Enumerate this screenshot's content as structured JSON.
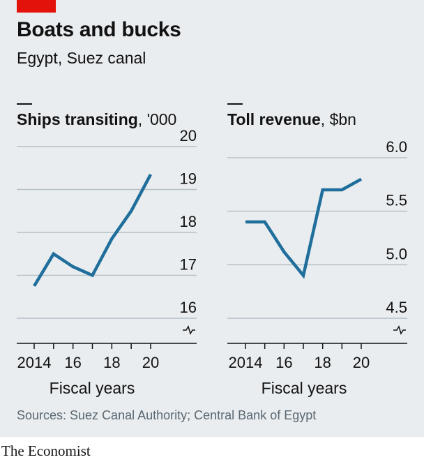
{
  "header": {
    "title": "Boats and bucks",
    "subtitle": "Egypt, Suez canal"
  },
  "chart_data": [
    {
      "type": "line",
      "title": "Ships transiting",
      "unit": "'000",
      "xlabel": "Fiscal years",
      "x": [
        2014,
        2015,
        2016,
        2017,
        2018,
        2019,
        2020
      ],
      "x_tick_labels": [
        "2014",
        "16",
        "18",
        "20"
      ],
      "y_ticks": [
        "16",
        "17",
        "18",
        "19",
        "20"
      ],
      "ylim": [
        15.8,
        20
      ],
      "axis_break": true,
      "series": [
        {
          "values": [
            16.75,
            17.5,
            17.2,
            17.0,
            17.85,
            18.5,
            19.35
          ]
        }
      ],
      "color": "#1f6e9b",
      "grid": true
    },
    {
      "type": "line",
      "title": "Toll revenue",
      "unit": "$bn",
      "xlabel": "Fiscal years",
      "x": [
        2014,
        2015,
        2016,
        2017,
        2018,
        2019,
        2020
      ],
      "x_tick_labels": [
        "2014",
        "16",
        "18",
        "20"
      ],
      "y_ticks": [
        "4.5",
        "5.0",
        "5.5",
        "6.0"
      ],
      "ylim": [
        4.4,
        6.0
      ],
      "axis_break": true,
      "series": [
        {
          "values": [
            5.4,
            5.4,
            5.12,
            4.9,
            5.7,
            5.7,
            5.8
          ]
        }
      ],
      "color": "#1f6e9b",
      "grid": true
    }
  ],
  "source": "Sources: Suez Canal Authority; Central Bank of Egypt",
  "footer": "The Economist"
}
